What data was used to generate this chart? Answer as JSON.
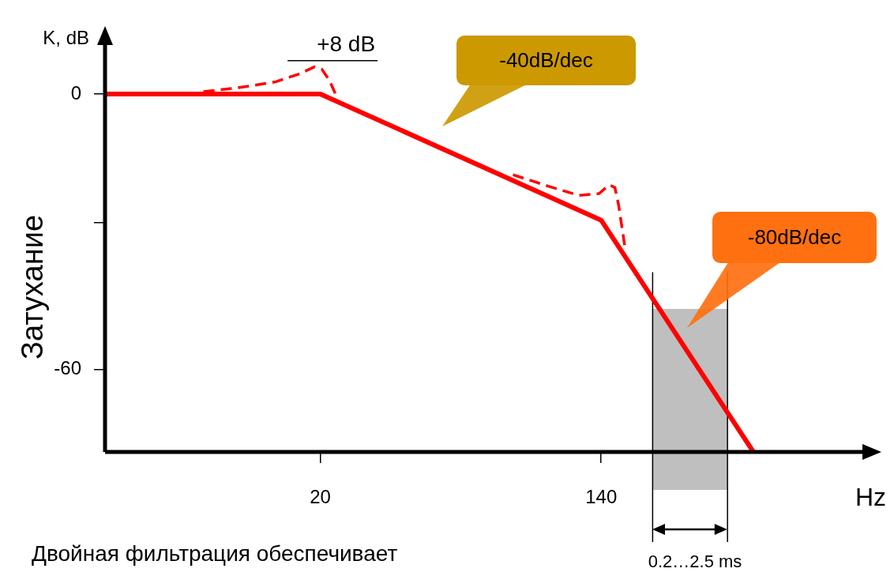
{
  "chart_data": {
    "type": "line",
    "ylabel": "Затухание",
    "xlabel": "Hz",
    "log": "x",
    "xlim": [
      4.5,
      865
    ],
    "xticks": [
      20,
      140
    ],
    "ylim": [
      -78,
      11
    ],
    "yticks": [
      0,
      {
        "value": -28,
        "label": null
      },
      {
        "value": -60,
        "label": "-60"
      }
    ],
    "grid": false,
    "legend": false,
    "marker": "none",
    "series": [
      {
        "color": "#ff0000",
        "line_style": "solid",
        "x": [
          4.5,
          20,
          140,
          402
        ],
        "values": [
          0,
          0,
          -27.5,
          -78
        ]
      },
      {
        "color": "#ff0000",
        "line_style": "dashed",
        "x": [
          8.9,
          11.2,
          14.6,
          17.2,
          19.2,
          20.2,
          21.3,
          22.3,
          null,
          76,
          97,
          120,
          138,
          148,
          154,
          158,
          165
        ],
        "values": [
          0.5,
          1.3,
          2.6,
          4.3,
          5.9,
          5.4,
          3.0,
          -0.3,
          null,
          -17.6,
          -20.1,
          -22.1,
          -21.7,
          -19.8,
          -20.4,
          -24.2,
          -33.3
        ]
      }
    ],
    "bands": [
      {
        "axis": "x",
        "from": 200,
        "to": 336,
        "color": "#bfbfbf"
      }
    ],
    "annotations": [
      "K, dB",
      {
        "text": "+8 dB",
        "x": 19.2,
        "y": 5.9
      },
      "-40dB/dec",
      "-80dB/dec",
      "0.2…2.5 ms",
      "Двойная фильтрация обеспечивает"
    ]
  }
}
